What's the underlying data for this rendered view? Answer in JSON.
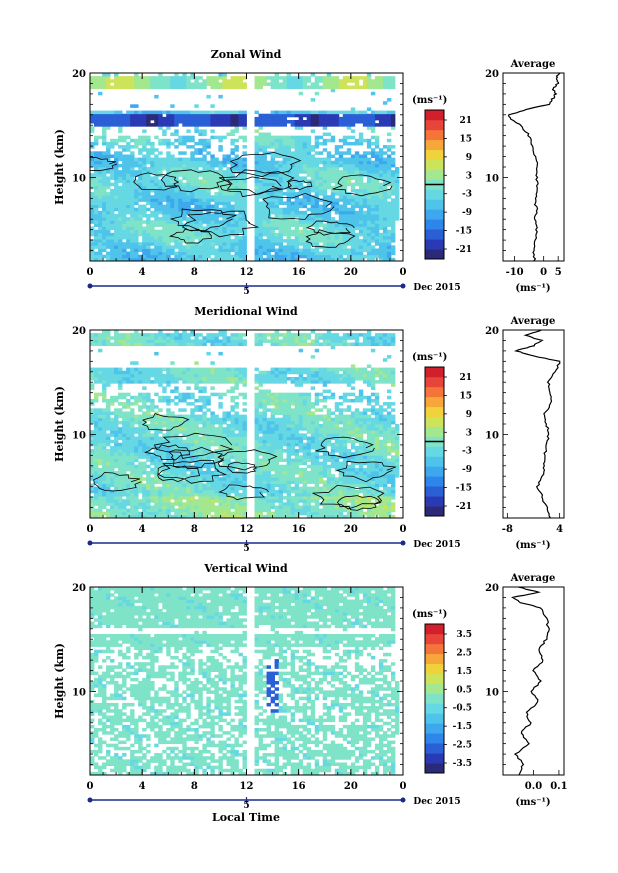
{
  "figure": {
    "month_label": "Dec 2015",
    "xlabel": "Local Time",
    "ylabel": "Height (km)",
    "unit": "(ms⁻¹)",
    "avg_title": "Average",
    "x_ticks": [
      "0",
      "4",
      "8",
      "12",
      "16",
      "20",
      "0"
    ],
    "date_marker": "5",
    "y_ticks": [
      "10",
      "20"
    ]
  },
  "colormap": [
    "#2a2a78",
    "#2a3ab4",
    "#2b5fd6",
    "#2f86ea",
    "#3ea8ee",
    "#4fc4ea",
    "#66d8e4",
    "#7fe3c8",
    "#a3e78e",
    "#cde35a",
    "#efd23c",
    "#f7a73a",
    "#f4743a",
    "#e8453a",
    "#d21f2c"
  ],
  "chart_data": [
    {
      "type": "heatmap",
      "title": "Zonal Wind",
      "variable": "zonal",
      "x_range": [
        0,
        24
      ],
      "y_range": [
        2,
        20
      ],
      "colorbar_ticks": [
        "21",
        "15",
        "9",
        "3",
        "-3",
        "-9",
        "-15",
        "-21"
      ],
      "colorbar_range": [
        -24,
        24
      ],
      "contour_level": 0,
      "average_profile": {
        "title": "Average",
        "xlim": [
          -14,
          7
        ],
        "x_ticks": [
          "-10",
          "0",
          "5"
        ],
        "xlabel": "(ms⁻¹)",
        "height": [
          2,
          3,
          4,
          5,
          6,
          7,
          8,
          9,
          10,
          11,
          12,
          13,
          14,
          15,
          15.5,
          16,
          16.5,
          17,
          17.5,
          18,
          18.5,
          19,
          19.5,
          20
        ],
        "values": [
          -3,
          -3.5,
          -3,
          -2.5,
          -3,
          -2.5,
          -3,
          -2,
          -2.5,
          -2,
          -3,
          -4,
          -5,
          -8,
          -11,
          -12,
          -6,
          2,
          3,
          4,
          3,
          5,
          4,
          6
        ]
      }
    },
    {
      "type": "heatmap",
      "title": "Meridional Wind",
      "variable": "meridional",
      "x_range": [
        0,
        24
      ],
      "y_range": [
        2,
        20
      ],
      "colorbar_ticks": [
        "21",
        "15",
        "9",
        "3",
        "-3",
        "-9",
        "-15",
        "-21"
      ],
      "colorbar_range": [
        -24,
        24
      ],
      "contour_level": 0,
      "average_profile": {
        "title": "Average",
        "xlim": [
          -9,
          5
        ],
        "x_ticks": [
          "-8",
          "4"
        ],
        "xlabel": "(ms⁻¹)",
        "height": [
          2,
          3,
          4,
          5,
          6,
          7,
          8,
          9,
          10,
          11,
          12,
          13,
          14,
          15,
          16,
          17,
          17.5,
          18,
          18.5,
          19,
          19.5,
          20
        ],
        "values": [
          2,
          1,
          0,
          -1,
          0,
          0.5,
          0.5,
          1,
          1.5,
          1,
          0.5,
          2,
          2,
          1.5,
          3,
          4,
          -2,
          -6,
          -2,
          0,
          -4,
          0
        ]
      }
    },
    {
      "type": "heatmap",
      "title": "Vertical Wind",
      "variable": "vertical",
      "x_range": [
        0,
        24
      ],
      "y_range": [
        2,
        20
      ],
      "colorbar_ticks": [
        "3.5",
        "2.5",
        "1.5",
        "0.5",
        "-0.5",
        "-1.5",
        "-2.5",
        "-3.5"
      ],
      "colorbar_range": [
        -4,
        4
      ],
      "average_profile": {
        "title": "Average",
        "xlim": [
          -0.12,
          0.12
        ],
        "x_ticks": [
          "0.0",
          "0.1"
        ],
        "xlabel": "(ms⁻¹)",
        "height": [
          2,
          3,
          4,
          5,
          6,
          7,
          8,
          9,
          10,
          11,
          12,
          13,
          14,
          15,
          16,
          17,
          18,
          18.5,
          19,
          19.5,
          20
        ],
        "values": [
          -0.06,
          -0.04,
          -0.07,
          -0.02,
          -0.05,
          -0.01,
          -0.03,
          0.02,
          -0.01,
          0.03,
          0.0,
          0.04,
          0.02,
          0.05,
          0.06,
          0.05,
          0.03,
          -0.05,
          -0.08,
          0.02,
          -0.06
        ]
      }
    }
  ]
}
